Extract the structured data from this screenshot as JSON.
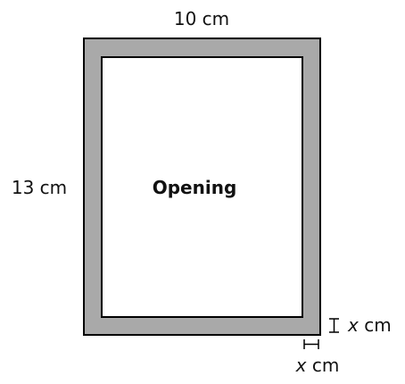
{
  "diagram": {
    "top_label": "10 cm",
    "left_label": "13 cm",
    "center_label": "Opening",
    "right_var": "x",
    "right_unit": " cm",
    "bottom_var": "x",
    "bottom_unit": " cm"
  },
  "colors": {
    "frame": "#a9a9a9",
    "opening": "#ffffff",
    "stroke": "#000000"
  }
}
